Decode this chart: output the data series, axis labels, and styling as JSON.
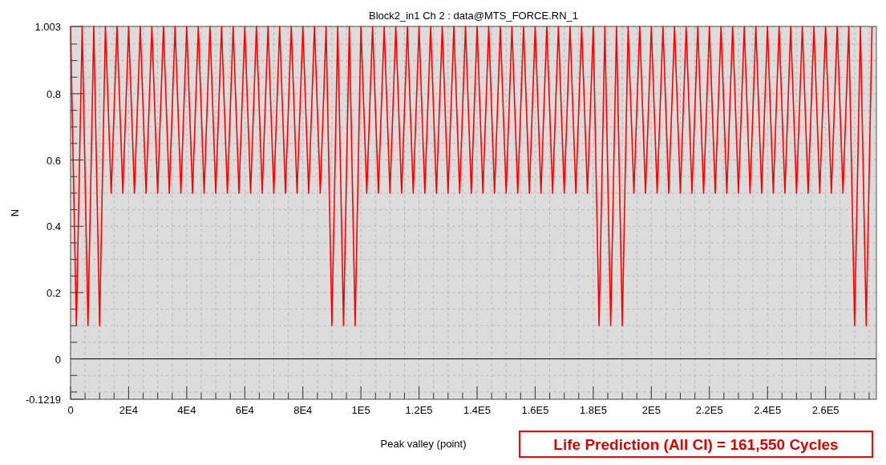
{
  "chart_data": {
    "type": "line",
    "title": "Block2_in1  Ch 2 : data@MTS_FORCE.RN_1",
    "xlabel": "Peak valley (point)",
    "ylabel": "N",
    "annotations": [
      "Life Prediction (All CI) = 161,550 Cycles"
    ],
    "color": "#ff0000",
    "grid": true,
    "xlim": [
      0,
      277500
    ],
    "ylim": [
      -0.1219,
      1.003
    ],
    "xticks": [
      0,
      {
        "value": 5000,
        "label": null
      },
      {
        "value": 10000,
        "label": null
      },
      {
        "value": 15000,
        "label": null
      },
      {
        "value": 20000,
        "label": "2E4"
      },
      {
        "value": 25000,
        "label": null
      },
      {
        "value": 30000,
        "label": null
      },
      {
        "value": 35000,
        "label": null
      },
      {
        "value": 40000,
        "label": "4E4"
      },
      {
        "value": 45000,
        "label": null
      },
      {
        "value": 50000,
        "label": null
      },
      {
        "value": 55000,
        "label": null
      },
      {
        "value": 60000,
        "label": "6E4"
      },
      {
        "value": 65000,
        "label": null
      },
      {
        "value": 70000,
        "label": null
      },
      {
        "value": 75000,
        "label": null
      },
      {
        "value": 80000,
        "label": "8E4"
      },
      {
        "value": 85000,
        "label": null
      },
      {
        "value": 90000,
        "label": null
      },
      {
        "value": 95000,
        "label": null
      },
      {
        "value": 100000,
        "label": "1E5"
      },
      {
        "value": 105000,
        "label": null
      },
      {
        "value": 110000,
        "label": null
      },
      {
        "value": 115000,
        "label": null
      },
      {
        "value": 120000,
        "label": "1.2E5"
      },
      {
        "value": 125000,
        "label": null
      },
      {
        "value": 130000,
        "label": null
      },
      {
        "value": 135000,
        "label": null
      },
      {
        "value": 140000,
        "label": "1.4E5"
      },
      {
        "value": 145000,
        "label": null
      },
      {
        "value": 150000,
        "label": null
      },
      {
        "value": 155000,
        "label": null
      },
      {
        "value": 160000,
        "label": "1.6E5"
      },
      {
        "value": 165000,
        "label": null
      },
      {
        "value": 170000,
        "label": null
      },
      {
        "value": 175000,
        "label": null
      },
      {
        "value": 180000,
        "label": "1.8E5"
      },
      {
        "value": 185000,
        "label": null
      },
      {
        "value": 190000,
        "label": null
      },
      {
        "value": 195000,
        "label": null
      },
      {
        "value": 200000,
        "label": "2E5"
      },
      {
        "value": 205000,
        "label": null
      },
      {
        "value": 210000,
        "label": null
      },
      {
        "value": 215000,
        "label": null
      },
      {
        "value": 220000,
        "label": "2.2E5"
      },
      {
        "value": 225000,
        "label": null
      },
      {
        "value": 230000,
        "label": null
      },
      {
        "value": 235000,
        "label": null
      },
      {
        "value": 240000,
        "label": "2.4E5"
      },
      {
        "value": 245000,
        "label": null
      },
      {
        "value": 250000,
        "label": null
      },
      {
        "value": 255000,
        "label": null
      },
      {
        "value": 260000,
        "label": "2.6E5"
      },
      {
        "value": 265000,
        "label": null
      },
      {
        "value": 270000,
        "label": null
      },
      {
        "value": 275000,
        "label": null
      }
    ],
    "yticks": [
      -0.1219,
      {
        "value": -0.1,
        "label": null
      },
      {
        "value": -0.05,
        "label": null
      },
      0,
      {
        "value": 0.05,
        "label": null
      },
      {
        "value": 0.1,
        "label": null
      },
      {
        "value": 0.15,
        "label": null
      },
      0.2,
      {
        "value": 0.25,
        "label": null
      },
      {
        "value": 0.3,
        "label": null
      },
      {
        "value": 0.35,
        "label": null
      },
      0.4,
      {
        "value": 0.45,
        "label": null
      },
      {
        "value": 0.5,
        "label": null
      },
      {
        "value": 0.55,
        "label": null
      },
      0.6,
      {
        "value": 0.65,
        "label": null
      },
      {
        "value": 0.7,
        "label": null
      },
      {
        "value": 0.75,
        "label": null
      },
      0.8,
      {
        "value": 0.85,
        "label": null
      },
      {
        "value": 0.9,
        "label": null
      },
      {
        "value": 0.95,
        "label": null
      },
      1.003
    ],
    "ref_lines": [
      {
        "axis": "y",
        "value": 0,
        "color": "#000000"
      }
    ],
    "x": [
      0,
      2000,
      4000,
      6000,
      8000,
      10000,
      12000,
      14000,
      16000,
      18000,
      20000,
      22000,
      24000,
      26000,
      28000,
      30000,
      32000,
      34000,
      36000,
      38000,
      40000,
      42000,
      44000,
      46000,
      48000,
      50000,
      52000,
      54000,
      56000,
      58000,
      60000,
      62000,
      64000,
      66000,
      68000,
      70000,
      72000,
      74000,
      76000,
      78000,
      80000,
      82000,
      84000,
      86000,
      88000,
      90000,
      92000,
      94000,
      96000,
      98000,
      100000,
      102000,
      104000,
      106000,
      108000,
      110000,
      112000,
      114000,
      116000,
      118000,
      120000,
      122000,
      124000,
      126000,
      128000,
      130000,
      132000,
      134000,
      136000,
      138000,
      140000,
      142000,
      144000,
      146000,
      148000,
      150000,
      152000,
      154000,
      156000,
      158000,
      160000,
      162000,
      164000,
      166000,
      168000,
      170000,
      172000,
      174000,
      176000,
      178000,
      180000,
      182000,
      184000,
      186000,
      188000,
      190000,
      192000,
      194000,
      196000,
      198000,
      200000,
      202000,
      204000,
      206000,
      208000,
      210000,
      212000,
      214000,
      216000,
      218000,
      220000,
      222000,
      224000,
      226000,
      228000,
      230000,
      232000,
      234000,
      236000,
      238000,
      240000,
      242000,
      244000,
      246000,
      248000,
      250000,
      252000,
      254000,
      256000,
      258000,
      260000,
      262000,
      264000,
      266000,
      268000,
      270000,
      272000,
      274000,
      276000
    ],
    "values": [
      1.003,
      0.1,
      1.003,
      0.1,
      1.003,
      0.1,
      1.003,
      0.5,
      1.003,
      0.5,
      1.003,
      0.5,
      1.003,
      0.5,
      1.003,
      0.5,
      1.003,
      0.5,
      1.003,
      0.5,
      1.003,
      0.5,
      1.003,
      0.5,
      1.003,
      0.5,
      1.003,
      0.5,
      1.003,
      0.5,
      1.003,
      0.5,
      1.003,
      0.5,
      1.003,
      0.5,
      1.003,
      0.5,
      1.003,
      0.5,
      1.003,
      0.5,
      1.003,
      0.5,
      1.003,
      0.1,
      1.003,
      0.1,
      1.003,
      0.1,
      1.003,
      0.5,
      1.003,
      0.5,
      1.003,
      0.5,
      1.003,
      0.5,
      1.003,
      0.5,
      1.003,
      0.5,
      1.003,
      0.5,
      1.003,
      0.5,
      1.003,
      0.5,
      1.003,
      0.5,
      1.003,
      0.5,
      1.003,
      0.5,
      1.003,
      0.5,
      1.003,
      0.5,
      1.003,
      0.5,
      1.003,
      0.5,
      1.003,
      0.5,
      1.003,
      0.5,
      1.003,
      0.5,
      1.003,
      0.5,
      1.003,
      0.1,
      1.003,
      0.1,
      1.003,
      0.1,
      1.003,
      0.5,
      1.003,
      0.5,
      1.003,
      0.5,
      1.003,
      0.5,
      1.003,
      0.5,
      1.003,
      0.5,
      1.003,
      0.5,
      1.003,
      0.5,
      1.003,
      0.5,
      1.003,
      0.5,
      1.003,
      0.5,
      1.003,
      0.5,
      1.003,
      0.5,
      1.003,
      0.5,
      1.003,
      0.5,
      1.003,
      0.5,
      1.003,
      0.5,
      1.003,
      0.5,
      1.003,
      0.5,
      1.003,
      0.1,
      1.003,
      0.1,
      1.003
    ]
  }
}
